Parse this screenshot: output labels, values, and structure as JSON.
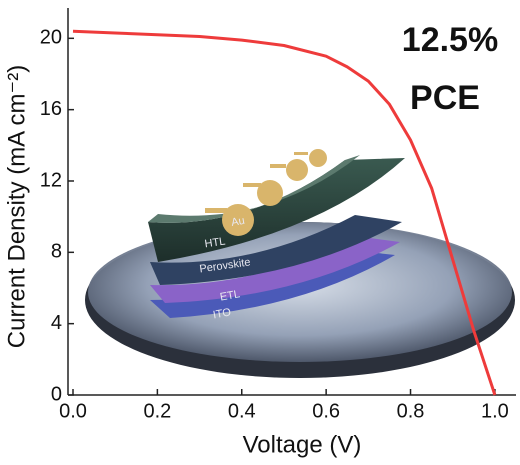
{
  "chart_data": {
    "type": "line",
    "x": [
      0,
      0.1,
      0.2,
      0.3,
      0.4,
      0.5,
      0.6,
      0.65,
      0.7,
      0.75,
      0.8,
      0.85,
      0.9,
      0.95,
      1.0
    ],
    "values": [
      20.4,
      20.3,
      20.2,
      20.1,
      19.9,
      19.6,
      19.0,
      18.4,
      17.6,
      16.3,
      14.3,
      11.6,
      7.6,
      3.6,
      0
    ],
    "color": "#ee3b3b",
    "x_label": "Voltage (V)",
    "y_label": "Current Density (mA cm⁻²)",
    "xlim": [
      0,
      1.05
    ],
    "ylim": [
      0,
      21.7
    ],
    "xticks": [
      {
        "value": 0,
        "label": "0.0"
      },
      0.2,
      0.4,
      0.6,
      0.8,
      {
        "value": 1.0,
        "label": "1.0"
      }
    ],
    "yticks": [
      0,
      4,
      8,
      12,
      16,
      20
    ],
    "annotations": [
      "12.5%",
      "PCE"
    ],
    "inset_labels": [
      "Au",
      "HTL",
      "Perovskite",
      "ETL",
      "ITO"
    ]
  }
}
